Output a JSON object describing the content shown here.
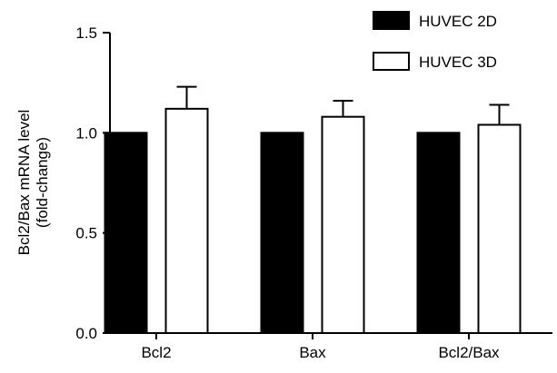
{
  "chart_data": {
    "type": "bar",
    "categories": [
      "Bcl2",
      "Bax",
      "Bcl2/Bax"
    ],
    "series": [
      {
        "name": "HUVEC 2D",
        "color": "#000000",
        "values": [
          1.0,
          1.0,
          1.0
        ],
        "errors": [
          0,
          0,
          0
        ]
      },
      {
        "name": "HUVEC 3D",
        "color": "#ffffff",
        "values": [
          1.12,
          1.08,
          1.04
        ],
        "errors": [
          0.11,
          0.08,
          0.1
        ]
      }
    ],
    "ylabel_lines": [
      "Bcl2/Bax mRNA level",
      "(fold-change)"
    ],
    "ylim": [
      0,
      1.5
    ],
    "yticks": [
      "0.0",
      "0.5",
      "1.0",
      "1.5"
    ],
    "legend_position": "top-right",
    "grid": false
  }
}
